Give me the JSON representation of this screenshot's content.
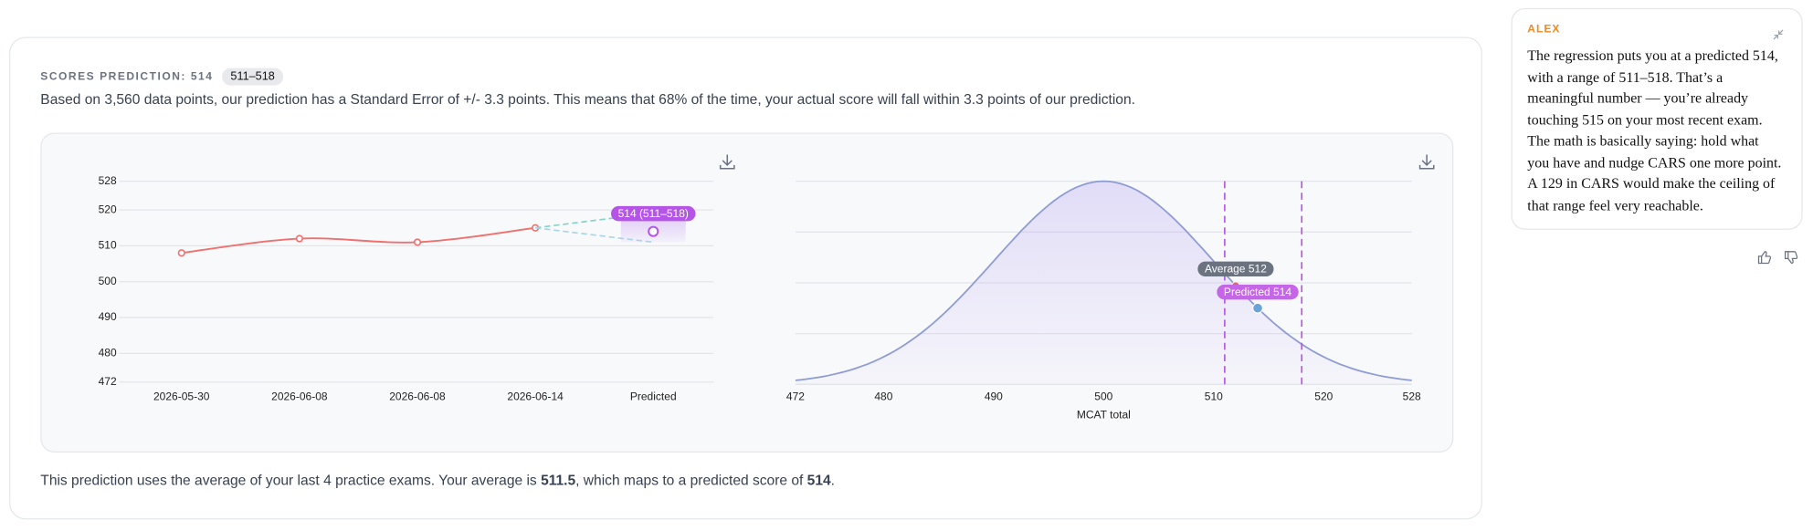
{
  "header": {
    "title": "SCORES PREDICTION: 514",
    "range_badge": "511–518",
    "description": "Based on 3,560 data points, our prediction has a Standard Error of +/- 3.3 points. This means that 68% of the time, your actual score will fall within 3.3 points of our prediction."
  },
  "chart_data": [
    {
      "type": "line",
      "categories": [
        "2026-05-30",
        "2026-06-08",
        "2026-06-08",
        "2026-06-14",
        "Predicted"
      ],
      "values": [
        508,
        512,
        511,
        515,
        null
      ],
      "color": "#f07070",
      "predicted": {
        "value": 514,
        "value_label": "514 (511–518)",
        "low": 511,
        "high": 518,
        "color": "#b455e8"
      },
      "ylim": [
        472,
        528
      ],
      "yticks": [
        472,
        480,
        490,
        500,
        510,
        520,
        528
      ],
      "grid": true
    },
    {
      "type": "distribution",
      "xlabel": "MCAT total",
      "mean": 500,
      "sd": 10,
      "color": "#8e9bd4",
      "xlim": [
        472,
        528
      ],
      "xticks": [
        472,
        480,
        490,
        500,
        510,
        520,
        528
      ],
      "range": [
        511,
        518
      ],
      "range_color": "#b455e8",
      "markers": [
        {
          "value": 512,
          "label": "Average 512",
          "color": "#e06a6a",
          "label_color": "#6b7280"
        },
        {
          "value": 514,
          "label": "Predicted 514",
          "color": "#6aa3d8",
          "label_color": "#c466e6"
        }
      ]
    }
  ],
  "footer": {
    "text_before": "This prediction uses the average of your last 4 practice exams. Your average is ",
    "average": "511.5",
    "text_middle": ", which maps to a predicted score of ",
    "predicted": "514",
    "text_after": "."
  },
  "chat": {
    "author": "ALEX",
    "message": "The regression puts you at a predicted 514, with a range of 511–518. That’s a meaningful number — you’re already touching 515 on your most recent exam. The math is basically saying: hold what you have and nudge CARS one more point. A 129 in CARS would make the ceiling of that range feel very reachable."
  }
}
